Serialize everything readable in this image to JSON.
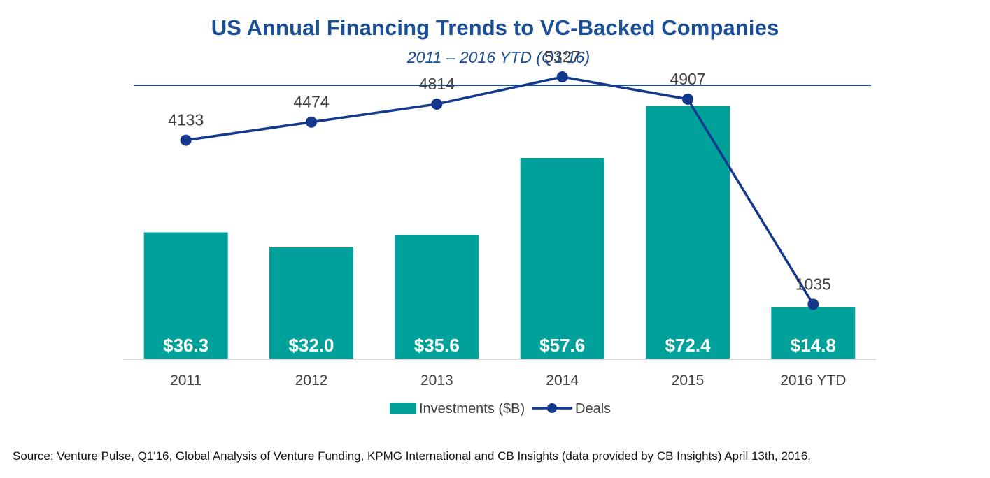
{
  "title": "US Annual Financing Trends to VC-Backed Companies",
  "subtitle": "2011 – 2016 YTD (Q1’16)",
  "source": "Source: Venture Pulse, Q1'16, Global Analysis of Venture Funding, KPMG International and CB Insights (data provided by CB Insights) April 13th, 2016.",
  "colors": {
    "title": "#1a4f96",
    "bars": "#00a19a",
    "line": "#13388c",
    "bar_labels": "#ffffff",
    "text": "#404040"
  },
  "chart_data": {
    "type": "bar",
    "categories": [
      "2011",
      "2012",
      "2013",
      "2014",
      "2015",
      "2016 YTD"
    ],
    "series": [
      {
        "name": "Investments ($B)",
        "type": "bar",
        "axis": "left",
        "values": [
          36.3,
          32.0,
          35.6,
          57.6,
          72.4,
          14.8
        ],
        "labels": [
          "$36.3",
          "$32.0",
          "$35.6",
          "$57.6",
          "$72.4",
          "$14.8"
        ]
      },
      {
        "name": "Deals",
        "type": "line",
        "axis": "right",
        "values": [
          4133,
          4474,
          4814,
          5327,
          4907,
          1035
        ],
        "labels": [
          "4133",
          "4474",
          "4814",
          "5327",
          "4907",
          "1035"
        ]
      }
    ],
    "legend": {
      "position": "bottom",
      "items": [
        {
          "label": "Investments ($B)",
          "kind": "bar"
        },
        {
          "label": "Deals",
          "kind": "line"
        }
      ]
    },
    "ylim_left": [
      0,
      80
    ],
    "ylim_right": [
      0,
      6000
    ],
    "grid": false
  }
}
